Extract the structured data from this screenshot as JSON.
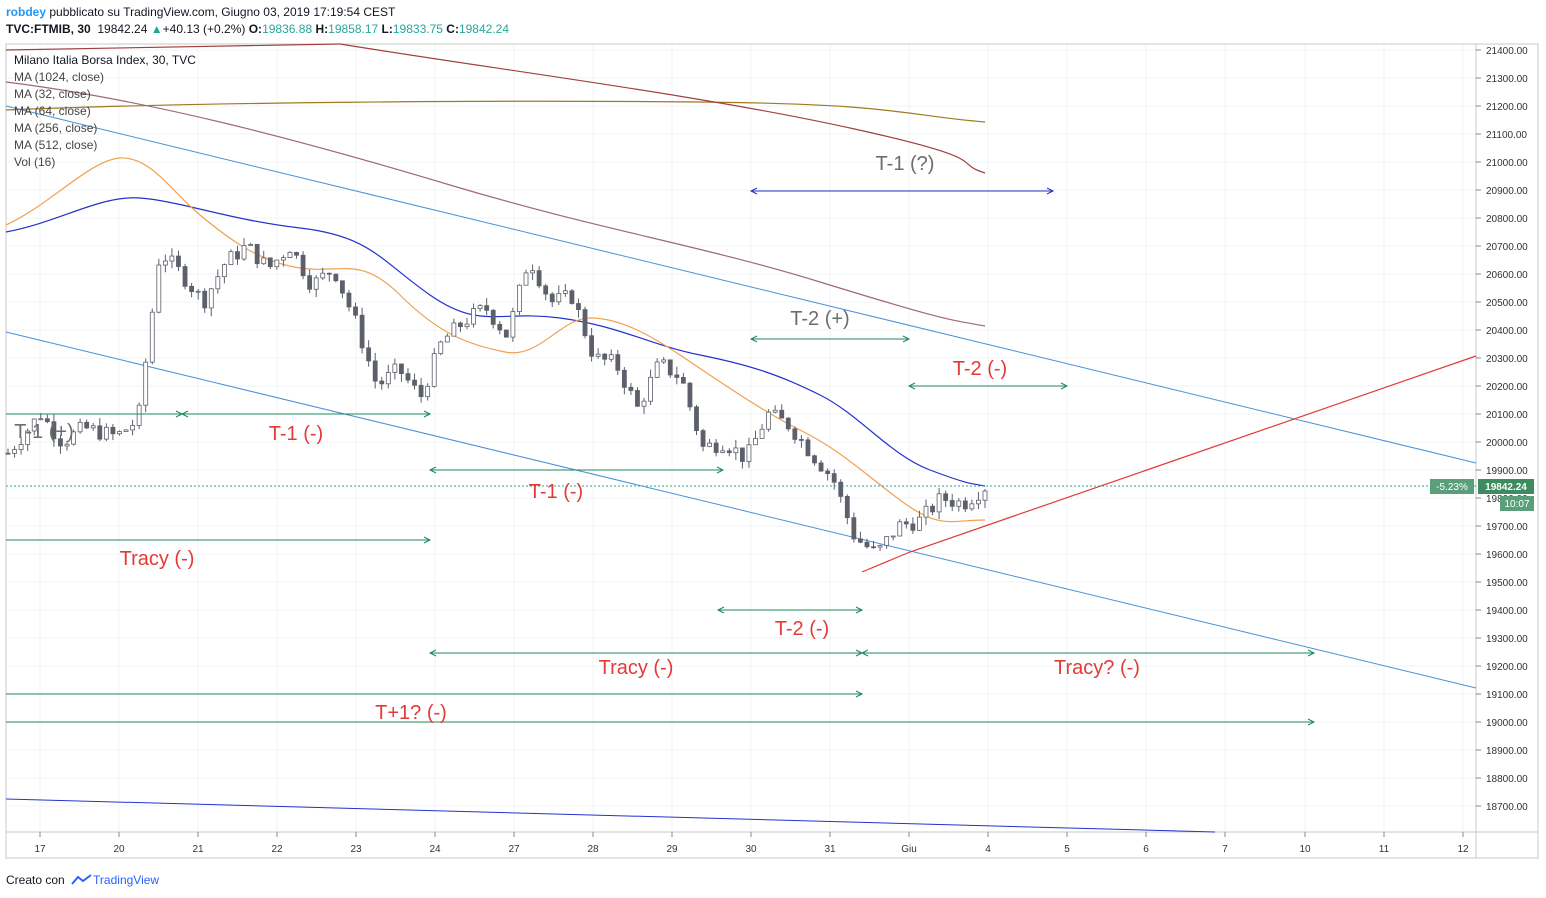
{
  "header": {
    "author": "robdey",
    "published": "pubblicato su TradingView.com, Giugno 03, 2019 17:19:54 CEST",
    "symbol": "TVC:FTMIB, 30",
    "last": "19842.24",
    "change": "+40.13 (+0.2%)",
    "o_label": "O:",
    "o": "19836.88",
    "h_label": "H:",
    "h": "19858.17",
    "l_label": "L:",
    "l": "19833.75",
    "c_label": "C:",
    "c": "19842.24"
  },
  "legend": {
    "title": "Milano Italia Borsa Index, 30, TVC",
    "items": [
      "MA (1024, close)",
      "MA (32, close)",
      "MA (64, close)",
      "MA (256, close)",
      "MA (512, close)",
      "Vol (16)"
    ]
  },
  "footer": {
    "created": "Creato con",
    "brand": "TradingView"
  },
  "colors": {
    "blue_line": "#4a90d9",
    "red": "#e53935",
    "green": "#1f8a5a",
    "gray_text": "#6d6d6d",
    "ma32": "#f0a050",
    "ma64": "#2233cc",
    "ma256": "#9e6a72",
    "ma512": "#9e7a20",
    "ma1024": "#a04040"
  },
  "chart_data": {
    "type": "candlestick",
    "y_ticks": [
      "21400.00",
      "21300.00",
      "21200.00",
      "21100.00",
      "21000.00",
      "20900.00",
      "20800.00",
      "20700.00",
      "20600.00",
      "20500.00",
      "20400.00",
      "20300.00",
      "20200.00",
      "20100.00",
      "20000.00",
      "19900.00",
      "19800.00",
      "19700.00",
      "19600.00",
      "19500.00",
      "19400.00",
      "19300.00",
      "19200.00",
      "19100.00",
      "19000.00",
      "18900.00",
      "18800.00",
      "18700.00"
    ],
    "x_ticks": [
      "17",
      "20",
      "21",
      "22",
      "23",
      "24",
      "27",
      "28",
      "29",
      "30",
      "31",
      "Giu",
      "4",
      "5",
      "6",
      "7",
      "10",
      "11",
      "12"
    ],
    "last_price": {
      "value": 19842.24,
      "label": "19842.24",
      "pct": "-5.23%",
      "countdown": "10:07"
    },
    "ylim": [
      18600,
      21450
    ],
    "candles_path": [
      [
        0,
        19960
      ],
      [
        1.5,
        20100
      ],
      [
        2.5,
        20000
      ],
      [
        3.5,
        20050
      ],
      [
        5,
        20020
      ],
      [
        6,
        20080
      ],
      [
        7,
        20680
      ],
      [
        8,
        20600
      ],
      [
        9,
        20500
      ],
      [
        10,
        20640
      ],
      [
        11,
        20700
      ],
      [
        12,
        20620
      ],
      [
        13,
        20700
      ],
      [
        14,
        20560
      ],
      [
        15,
        20620
      ],
      [
        16,
        20430
      ],
      [
        17,
        20200
      ],
      [
        18,
        20260
      ],
      [
        19,
        20160
      ],
      [
        20,
        20360
      ],
      [
        21,
        20430
      ],
      [
        22,
        20480
      ],
      [
        23,
        20380
      ],
      [
        24,
        20660
      ],
      [
        25,
        20500
      ],
      [
        26,
        20520
      ],
      [
        27,
        20300
      ],
      [
        28,
        20280
      ],
      [
        29,
        20120
      ],
      [
        30,
        20280
      ],
      [
        31,
        20230
      ],
      [
        32,
        19980
      ],
      [
        33,
        20000
      ],
      [
        34,
        19940
      ],
      [
        35,
        20100
      ],
      [
        36,
        20060
      ],
      [
        37,
        19960
      ],
      [
        38,
        19870
      ],
      [
        39,
        19660
      ],
      [
        40,
        19600
      ],
      [
        41,
        19700
      ],
      [
        42,
        19720
      ],
      [
        43,
        19800
      ],
      [
        44,
        19780
      ],
      [
        45,
        19840
      ]
    ],
    "annotations": [
      {
        "text": "T-1 (?)",
        "color": "gray"
      },
      {
        "text": "T-2 (+)",
        "color": "gray"
      },
      {
        "text": "T-2 (-)",
        "color": "red"
      },
      {
        "text": "T-1 (+)",
        "color": "gray"
      },
      {
        "text": "T-1 (-)",
        "color": "red"
      },
      {
        "text": "T-1 (-)",
        "color": "red"
      },
      {
        "text": "Tracy (-)",
        "color": "red"
      },
      {
        "text": "T-2 (-)",
        "color": "red"
      },
      {
        "text": "Tracy (-)",
        "color": "red"
      },
      {
        "text": "Tracy? (-)",
        "color": "red"
      },
      {
        "text": "T+1? (-)",
        "color": "red"
      }
    ]
  }
}
